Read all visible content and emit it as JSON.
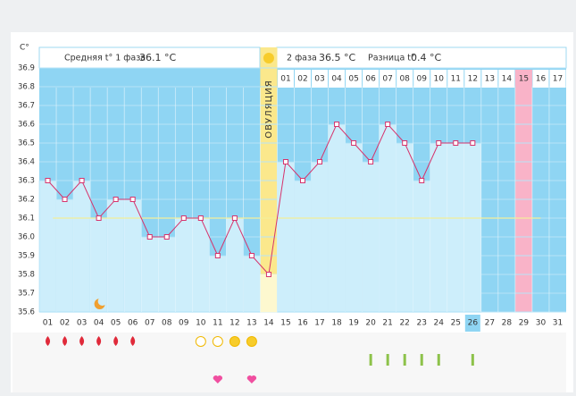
{
  "chart_data": {
    "type": "bbt",
    "unit_label": "C°",
    "header": {
      "phase1_label": "Средняя t° 1 фаза",
      "phase1_avg": "36.1 °C",
      "phase2_label": "2 фаза",
      "phase2_avg": "36.5 °C",
      "diff_label": "Разница t°",
      "diff": "0.4 °C"
    },
    "ovulation_label": "ОВУЛЯЦИЯ",
    "categories": [
      "01",
      "02",
      "03",
      "04",
      "05",
      "06",
      "07",
      "08",
      "09",
      "10",
      "11",
      "12",
      "13",
      "14",
      "15",
      "16",
      "17",
      "18",
      "19",
      "20",
      "21",
      "22",
      "23",
      "24",
      "25",
      "26",
      "27",
      "28",
      "29",
      "30",
      "31"
    ],
    "phase2_days": [
      "01",
      "02",
      "03",
      "04",
      "05",
      "06",
      "07",
      "08",
      "09",
      "10",
      "11",
      "12",
      "13",
      "14",
      "15",
      "16",
      "17"
    ],
    "values": [
      36.3,
      36.2,
      36.3,
      36.1,
      36.2,
      36.2,
      36.0,
      36.0,
      36.1,
      36.1,
      35.9,
      36.1,
      35.9,
      35.8,
      36.4,
      36.3,
      36.4,
      36.6,
      36.5,
      36.4,
      36.6,
      36.5,
      36.3,
      36.5,
      36.5,
      36.5,
      null,
      null,
      null,
      null,
      null
    ],
    "color": "#d6336c",
    "coverline": 36.1,
    "ylim": [
      35.6,
      36.9
    ],
    "yticks": [
      35.6,
      35.7,
      35.8,
      35.9,
      {
        "value": 36,
        "label": "36.0"
      },
      36.1,
      36.2,
      36.3,
      36.4,
      36.5,
      36.6,
      36.7,
      36.8,
      36.9
    ],
    "grid": true
  }
}
